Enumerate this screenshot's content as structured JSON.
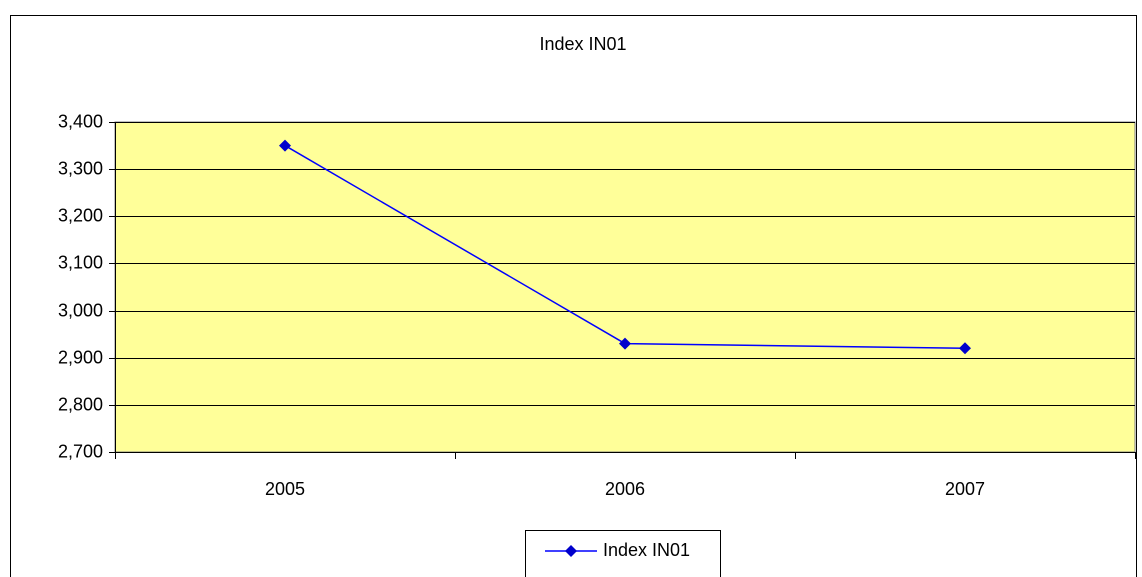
{
  "chart_data": {
    "type": "line",
    "title": "Index IN01",
    "categories": [
      "2005",
      "2006",
      "2007"
    ],
    "series": [
      {
        "name": "Index IN01",
        "color": "#0000ff",
        "marker_color": "#0000cc",
        "values": [
          3350,
          2930,
          2920
        ]
      }
    ],
    "ylim": [
      2700,
      3400
    ],
    "yticks": [
      {
        "value": 2700,
        "label": "2,700"
      },
      {
        "value": 2800,
        "label": "2,800"
      },
      {
        "value": 2900,
        "label": "2,900"
      },
      {
        "value": 3000,
        "label": "3,000"
      },
      {
        "value": 3100,
        "label": "3,100"
      },
      {
        "value": 3200,
        "label": "3,200"
      },
      {
        "value": 3300,
        "label": "3,300"
      },
      {
        "value": 3400,
        "label": "3,400"
      }
    ],
    "grid": true,
    "plot_background": "#ffff99",
    "legend": "bottom"
  }
}
